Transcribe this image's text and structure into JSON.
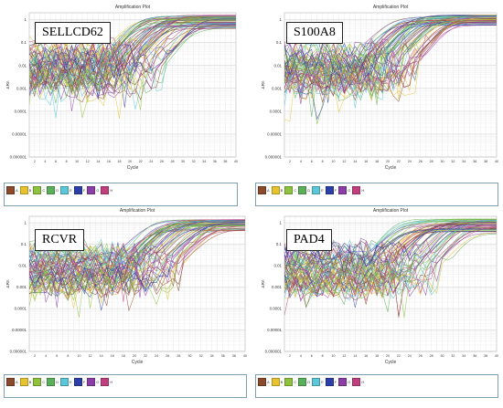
{
  "legend": {
    "wells": [
      {
        "label": "A",
        "color": "#8b4a2b"
      },
      {
        "label": "B",
        "color": "#e8c330"
      },
      {
        "label": "C",
        "color": "#8fc23f"
      },
      {
        "label": "D",
        "color": "#5ab05a"
      },
      {
        "label": "E",
        "color": "#5bc7d8"
      },
      {
        "label": "F",
        "color": "#2c3fa8"
      },
      {
        "label": "G",
        "color": "#8a3ea6"
      },
      {
        "label": "H",
        "color": "#c0407f"
      }
    ]
  },
  "chart_data": [
    {
      "type": "line",
      "title": "Amplification Plot",
      "gene_label": "SELLCD62",
      "xlabel": "Cycle",
      "ylabel": "ΔRn",
      "yscale": "log",
      "xlim": [
        1,
        40
      ],
      "ylim": [
        1e-06,
        2
      ],
      "yticks": [
        "0.000001",
        "0.00001",
        "0.0001",
        "0.001",
        "0.01",
        "0.1",
        "1"
      ],
      "xticks": [
        2,
        4,
        6,
        8,
        10,
        12,
        14,
        16,
        18,
        20,
        22,
        24,
        26,
        28,
        30,
        32,
        34,
        36,
        38,
        40
      ],
      "grid": true,
      "series_summary": {
        "curve_count": 64,
        "onset_cycle_range": [
          14,
          27
        ],
        "plateau_range": [
          0.4,
          1.6
        ],
        "baseline_range": [
          0.001,
          0.05
        ]
      }
    },
    {
      "type": "line",
      "title": "Amplification Plot",
      "gene_label": "S100A8",
      "xlabel": "Cycle",
      "ylabel": "ΔRn",
      "yscale": "log",
      "xlim": [
        1,
        40
      ],
      "ylim": [
        1e-06,
        2
      ],
      "yticks": [
        "0.000001",
        "0.00001",
        "0.0001",
        "0.001",
        "0.01",
        "0.1",
        "1"
      ],
      "xticks": [
        2,
        4,
        6,
        8,
        10,
        12,
        14,
        16,
        18,
        20,
        22,
        24,
        26,
        28,
        30,
        32,
        34,
        36,
        38,
        40
      ],
      "grid": true,
      "series_summary": {
        "curve_count": 64,
        "onset_cycle_range": [
          14,
          26
        ],
        "plateau_range": [
          0.5,
          1.6
        ],
        "baseline_range": [
          0.001,
          0.05
        ]
      }
    },
    {
      "type": "line",
      "title": "Amplification Plot",
      "gene_label": "RCVR",
      "xlabel": "Cycle",
      "ylabel": "ΔRn",
      "yscale": "log",
      "xlim": [
        1,
        40
      ],
      "ylim": [
        1e-06,
        2
      ],
      "yticks": [
        "0.000001",
        "0.00001",
        "0.0001",
        "0.001",
        "0.01",
        "0.1",
        "1"
      ],
      "xticks": [
        2,
        4,
        6,
        8,
        10,
        12,
        14,
        16,
        18,
        20,
        22,
        24,
        26,
        28,
        30,
        32,
        34,
        36,
        38,
        40
      ],
      "grid": true,
      "series_summary": {
        "curve_count": 64,
        "onset_cycle_range": [
          16,
          29
        ],
        "plateau_range": [
          0.4,
          1.4
        ],
        "baseline_range": [
          0.001,
          0.05
        ]
      }
    },
    {
      "type": "line",
      "title": "Amplification Plot",
      "gene_label": "PAD4",
      "xlabel": "Cycle",
      "ylabel": "ΔRn",
      "yscale": "log",
      "xlim": [
        1,
        40
      ],
      "ylim": [
        1e-06,
        2
      ],
      "yticks": [
        "0.000001",
        "0.00001",
        "0.0001",
        "0.001",
        "0.01",
        "0.1",
        "1"
      ],
      "xticks": [
        2,
        4,
        6,
        8,
        10,
        12,
        14,
        16,
        18,
        20,
        22,
        24,
        26,
        28,
        30,
        32,
        34,
        36,
        38,
        40
      ],
      "grid": true,
      "series_summary": {
        "curve_count": 64,
        "onset_cycle_range": [
          15,
          30
        ],
        "plateau_range": [
          0.3,
          1.5
        ],
        "baseline_range": [
          0.001,
          0.05
        ]
      }
    }
  ]
}
